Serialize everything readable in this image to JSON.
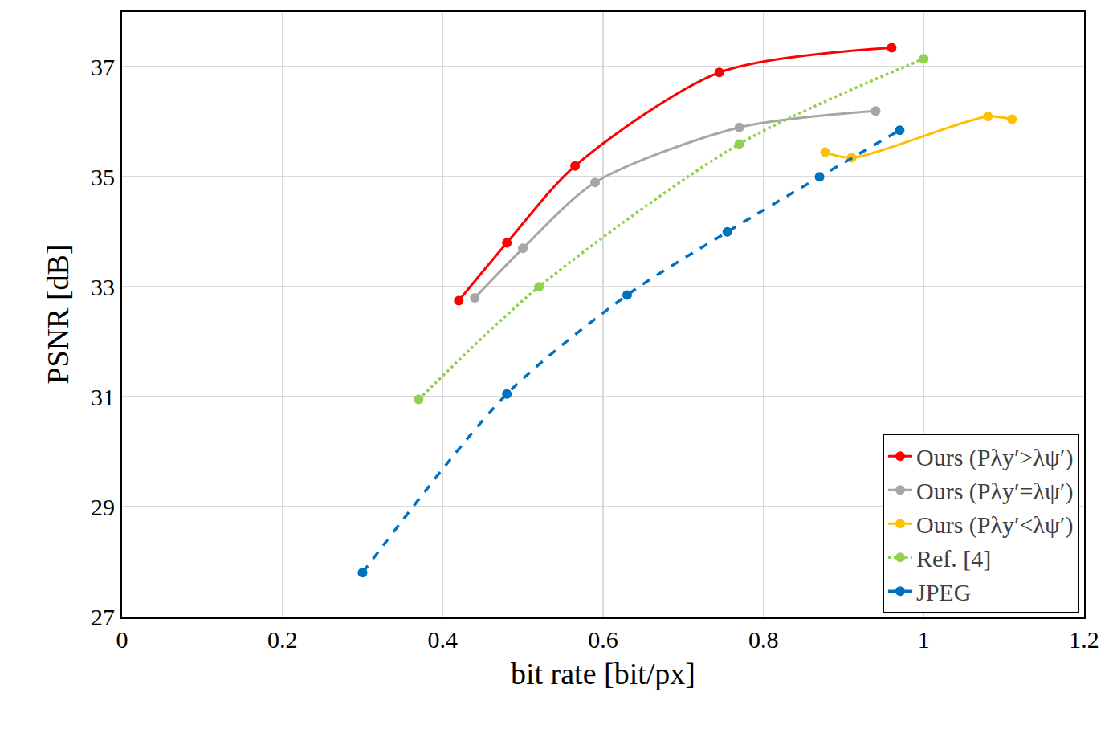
{
  "chart_data": {
    "type": "line",
    "x_label": "bit rate [bit/px]",
    "y_label": "PSNR [dB]",
    "xlim": [
      0,
      1.2
    ],
    "xticks": [
      0,
      0.2,
      0.4,
      0.6,
      0.8,
      1,
      1.2
    ],
    "ylim": [
      27,
      38
    ],
    "yticks": [
      27,
      29,
      31,
      33,
      35,
      37
    ],
    "grid": true,
    "legend": "lower right",
    "marker": "circle",
    "series": [
      {
        "name": "Ours (Pλy′>λψ′)",
        "color": "#ff0000",
        "line_style": "solid",
        "x": [
          0.42,
          0.48,
          0.565,
          0.745,
          0.96
        ],
        "values": [
          32.75,
          33.8,
          35.2,
          36.9,
          37.35
        ]
      },
      {
        "name": "Ours (Pλy′=λψ′)",
        "color": "#a6a6a6",
        "line_style": "solid",
        "x": [
          0.44,
          0.5,
          0.59,
          0.77,
          0.94
        ],
        "values": [
          32.8,
          33.7,
          34.9,
          35.9,
          36.2
        ]
      },
      {
        "name": "Ours (Pλy′<λψ′)",
        "color": "#ffc000",
        "line_style": "solid",
        "x": [
          0.877,
          0.91,
          1.08,
          1.11
        ],
        "values": [
          35.45,
          35.35,
          36.1,
          36.05
        ]
      },
      {
        "name": "Ref. [4]",
        "color": "#92d050",
        "line_style": "dotted",
        "x": [
          0.37,
          0.52,
          0.77,
          1.0
        ],
        "values": [
          30.95,
          33.0,
          35.6,
          37.15
        ]
      },
      {
        "name": "JPEG",
        "color": "#0070c0",
        "line_style": "dashed",
        "x": [
          0.3,
          0.48,
          0.63,
          0.755,
          0.87,
          0.97
        ],
        "values": [
          27.8,
          31.05,
          32.85,
          34.0,
          35.0,
          35.85
        ]
      }
    ]
  }
}
